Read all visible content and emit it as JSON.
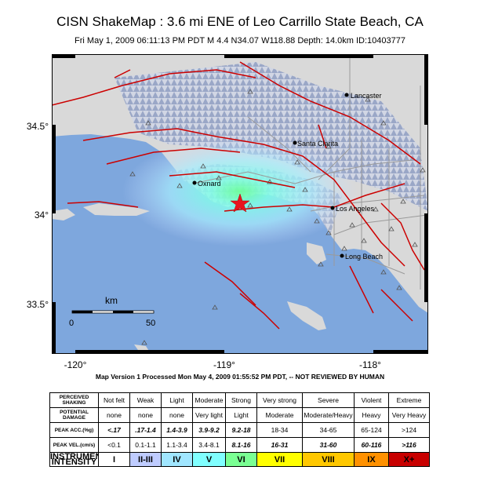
{
  "header": {
    "title": "CISN ShakeMap : 3.6 mi ENE of Leo Carrillo State Beach, CA",
    "subtitle": "Fri May  1, 2009 06:11:13 PM PDT   M 4.4   N34.07 W118.88   Depth: 14.0km   ID:10403777"
  },
  "map": {
    "lat_ticks": [
      "34.5°",
      "34°",
      "33.5°"
    ],
    "lon_ticks": [
      "-120°",
      "-119°",
      "-118°"
    ],
    "cities": [
      {
        "name": "Lancaster"
      },
      {
        "name": "Santa Clarita"
      },
      {
        "name": "Oxnard"
      },
      {
        "name": "Los Angeles"
      },
      {
        "name": "Long Beach"
      }
    ],
    "epicenter_marker": "star-icon",
    "scale_bar": {
      "unit": "km",
      "start": "0",
      "end": "50"
    },
    "colors": {
      "ocean": "#7ea7dd",
      "land": "#d9d9d9",
      "faults": "#cc0000",
      "roads": "#9a9a9a",
      "epicenter": "#e8141e"
    }
  },
  "footer": {
    "version_note": "Map Version 1 Processed Mon May 4, 2009 01:55:52 PM PDT, -- NOT REVIEWED BY HUMAN"
  },
  "legend": {
    "row_headers": [
      "PERCEIVED SHAKING",
      "POTENTIAL DAMAGE",
      "PEAK ACC.(%g)",
      "PEAK VEL.(cm/s)",
      "INSTRUMENTAL INTENSITY"
    ],
    "columns": [
      {
        "shaking": "Not felt",
        "damage": "none",
        "acc": "<.17",
        "vel": "<0.1",
        "intensity": "I",
        "color": "#ffffff"
      },
      {
        "shaking": "Weak",
        "damage": "none",
        "acc": ".17-1.4",
        "vel": "0.1-1.1",
        "intensity": "II-III",
        "color": "#bfccff"
      },
      {
        "shaking": "Light",
        "damage": "none",
        "acc": "1.4-3.9",
        "vel": "1.1-3.4",
        "intensity": "IV",
        "color": "#a0e6ff"
      },
      {
        "shaking": "Moderate",
        "damage": "Very light",
        "acc": "3.9-9.2",
        "vel": "3.4-8.1",
        "intensity": "V",
        "color": "#80ffff"
      },
      {
        "shaking": "Strong",
        "damage": "Light",
        "acc": "9.2-18",
        "vel": "8.1-16",
        "intensity": "VI",
        "color": "#7aff93"
      },
      {
        "shaking": "Very strong",
        "damage": "Moderate",
        "acc": "18-34",
        "vel": "16-31",
        "intensity": "VII",
        "color": "#ffff00"
      },
      {
        "shaking": "Severe",
        "damage": "Moderate/Heavy",
        "acc": "34-65",
        "vel": "31-60",
        "intensity": "VIII",
        "color": "#ffc800"
      },
      {
        "shaking": "Violent",
        "damage": "Heavy",
        "acc": "65-124",
        "vel": "60-116",
        "intensity": "IX",
        "color": "#ff9100"
      },
      {
        "shaking": "Extreme",
        "damage": "Very Heavy",
        "acc": ">124",
        "vel": ">116",
        "intensity": "X+",
        "color": "#c80000"
      }
    ]
  }
}
